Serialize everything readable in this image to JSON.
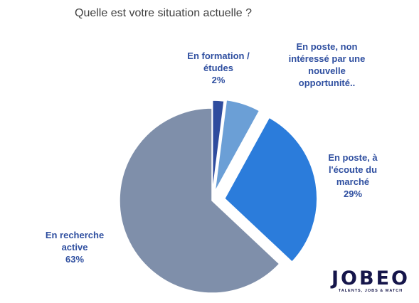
{
  "chart_data": {
    "type": "pie",
    "title": "Quelle est votre situation actuelle ?",
    "slices": [
      {
        "name": "En formation /\nétudes",
        "value": 2,
        "label": "2%",
        "color": "#2F4C9E"
      },
      {
        "name": "En poste, non\nintéressé par une\nnouvelle\nopportunité..",
        "value": 6,
        "label": "",
        "color": "#6B9FD6"
      },
      {
        "name": "En poste, à\nl'écoute du\nmarché",
        "value": 29,
        "label": "29%",
        "color": "#2B7CDB"
      },
      {
        "name": "En recherche\nactive",
        "value": 63,
        "label": "63%",
        "color": "#7F8FAA"
      }
    ],
    "legend": "none",
    "grid": false
  },
  "logo": {
    "word": "JOBEO",
    "tagline": "TALENTS, JOBS & MATCH"
  }
}
